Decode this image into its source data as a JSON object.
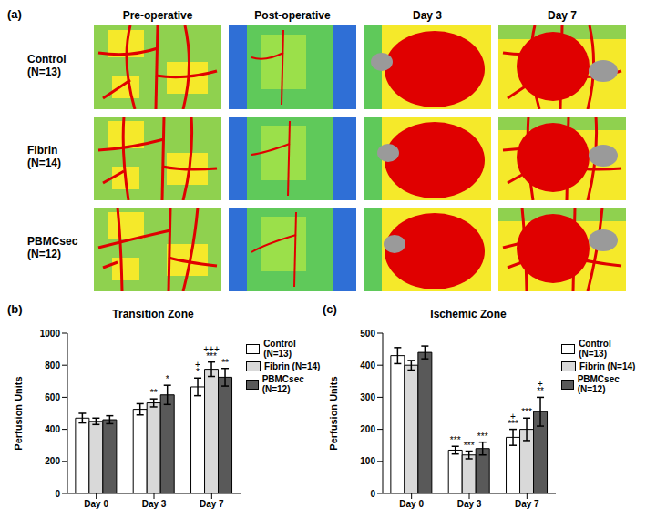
{
  "image_panel": {
    "label": "(a)",
    "columns": [
      "Pre-operative",
      "Post-operative",
      "Day 3",
      "Day 7"
    ],
    "rows": [
      "Control (N=13)",
      "Fibrin (N=14)",
      "PBMCsec (N=12)"
    ]
  },
  "chart_data": [
    {
      "type": "bar",
      "label": "(b)",
      "title": "Transition Zone",
      "y_label": "Perfusion Units",
      "categories": [
        "Day 0",
        "Day 3",
        "Day 7"
      ],
      "ylim": [
        0,
        1000
      ],
      "yticks": [
        0,
        200,
        400,
        600,
        800,
        1000
      ],
      "legend": "right",
      "series": [
        {
          "name": "Control (N=13)",
          "color": "#ffffff",
          "values": [
            470,
            525,
            665
          ],
          "errors": [
            30,
            35,
            55
          ],
          "annotations": [
            null,
            null,
            [
              "+",
              "*"
            ]
          ]
        },
        {
          "name": "Fibrin (N=14)",
          "color": "#d9d9d9",
          "values": [
            450,
            565,
            775
          ],
          "errors": [
            20,
            25,
            45
          ],
          "annotations": [
            null,
            [
              "**"
            ],
            [
              "+++",
              "***"
            ]
          ]
        },
        {
          "name": "PBMCsec (N=12)",
          "color": "#595959",
          "values": [
            460,
            615,
            725
          ],
          "errors": [
            25,
            60,
            55
          ],
          "annotations": [
            null,
            [
              "*"
            ],
            [
              "**"
            ]
          ]
        }
      ]
    },
    {
      "type": "bar",
      "label": "(c)",
      "title": "Ischemic Zone",
      "y_label": "Perfusion Units",
      "categories": [
        "Day 0",
        "Day 3",
        "Day 7"
      ],
      "ylim": [
        0,
        500
      ],
      "yticks": [
        0,
        100,
        200,
        300,
        400,
        500
      ],
      "legend": "right",
      "series": [
        {
          "name": "Control (N=13)",
          "color": "#ffffff",
          "values": [
            430,
            135,
            175
          ],
          "errors": [
            25,
            12,
            25
          ],
          "annotations": [
            null,
            [
              "***"
            ],
            [
              "+",
              "***"
            ]
          ]
        },
        {
          "name": "Fibrin (N=14)",
          "color": "#d9d9d9",
          "values": [
            400,
            120,
            200
          ],
          "errors": [
            15,
            12,
            35
          ],
          "annotations": [
            null,
            [
              "***"
            ],
            [
              "***"
            ]
          ]
        },
        {
          "name": "PBMCsec (N=12)",
          "color": "#595959",
          "values": [
            440,
            140,
            255
          ],
          "errors": [
            20,
            20,
            45
          ],
          "annotations": [
            null,
            [
              "***"
            ],
            [
              "+",
              "**"
            ]
          ]
        }
      ]
    }
  ]
}
